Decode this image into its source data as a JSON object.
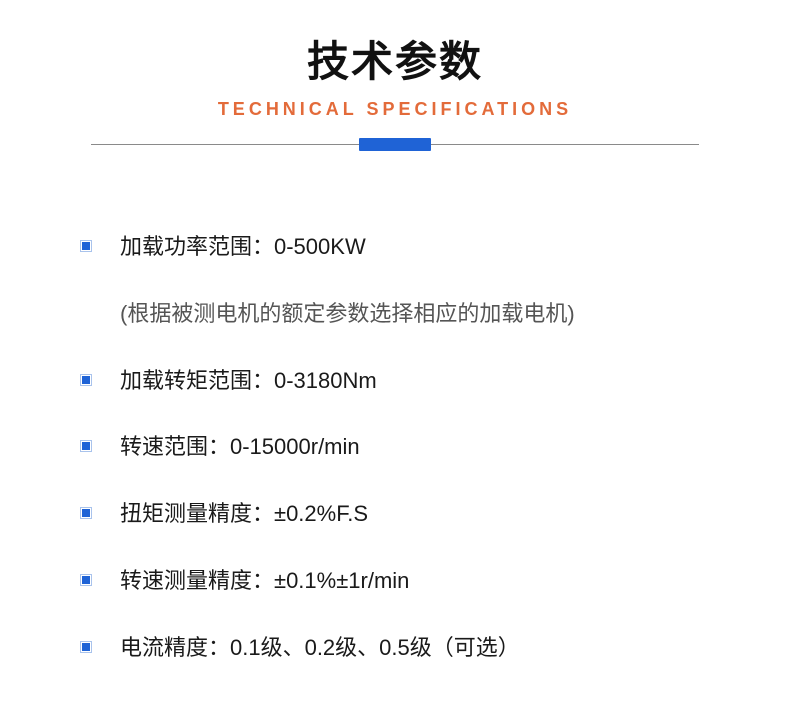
{
  "header": {
    "title_zh": "技术参数",
    "title_en": "TECHNICAL SPECIFICATIONS"
  },
  "colors": {
    "accent_blue": "#1f63d6",
    "accent_orange": "#e36b3a",
    "divider_gray": "#8a8a8a",
    "bullet_border": "#a9c3ec",
    "text_main": "#1a1a1a",
    "text_note": "#555",
    "background": "#ffffff"
  },
  "specs": [
    {
      "label": "加载功率范围：0-500KW",
      "note": "(根据被测电机的额定参数选择相应的加载电机)"
    },
    {
      "label": "加载转矩范围：0-3180Nm"
    },
    {
      "label": "转速范围：0-15000r/min"
    },
    {
      "label": "扭矩测量精度：±0.2%F.S"
    },
    {
      "label": "转速测量精度：±0.1%±1r/min"
    },
    {
      "label": "电流精度：0.1级、0.2级、0.5级（可选）"
    }
  ]
}
